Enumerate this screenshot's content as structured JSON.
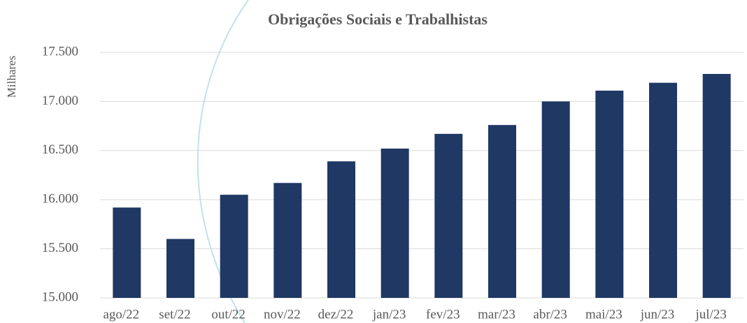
{
  "chart_data": {
    "type": "bar",
    "title": "Obrigações Sociais e Trabalhistas",
    "y_label": "Milhares",
    "categories": [
      "ago/22",
      "set/22",
      "out/22",
      "nov/22",
      "dez/22",
      "jan/23",
      "fev/23",
      "mar/23",
      "abr/23",
      "mai/23",
      "jun/23",
      "jul/23"
    ],
    "values": [
      15920,
      15600,
      16050,
      16170,
      16390,
      16520,
      16670,
      16760,
      17000,
      17110,
      17190,
      17280
    ],
    "color": "#1f3864",
    "ylim": [
      15000,
      17500
    ],
    "yticks": [
      {
        "value": 15000,
        "label": "15.000"
      },
      {
        "value": 15500,
        "label": "15.500"
      },
      {
        "value": 16000,
        "label": "16.000"
      },
      {
        "value": 16500,
        "label": "16.500"
      },
      {
        "value": 17000,
        "label": "17.000"
      },
      {
        "value": 17500,
        "label": "17.500"
      }
    ],
    "grid": true
  }
}
